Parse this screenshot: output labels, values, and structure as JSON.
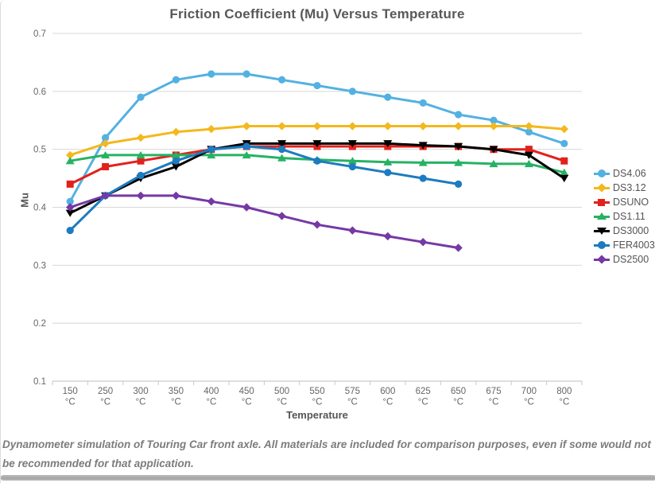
{
  "footer": {
    "text": "Dynamometer simulation of Touring Car front axle. All materials are included for comparison purposes, even if some would not be recommended for that application."
  },
  "chart_data": {
    "type": "line",
    "title": "Friction Coefficient (Mu) Versus Temperature",
    "xlabel": "Temperature",
    "ylabel": "Mu",
    "ylim": [
      0.1,
      0.7
    ],
    "ytick_step": 0.1,
    "grid": "horizontal",
    "legend_position": "right",
    "category_unit": "°C",
    "categories": [
      "150",
      "250",
      "300",
      "350",
      "400",
      "450",
      "500",
      "550",
      "575",
      "600",
      "625",
      "650",
      "675",
      "700",
      "800"
    ],
    "series": [
      {
        "name": "DS4.06",
        "color": "#53b1e2",
        "marker": "circle",
        "values": [
          0.41,
          0.52,
          0.59,
          0.62,
          0.63,
          0.63,
          0.62,
          0.61,
          0.6,
          0.59,
          0.58,
          0.56,
          0.55,
          0.53,
          0.51
        ]
      },
      {
        "name": "DS3.12",
        "color": "#f4b81d",
        "marker": "diamond",
        "values": [
          0.49,
          0.51,
          0.52,
          0.53,
          0.535,
          0.54,
          0.54,
          0.54,
          0.54,
          0.54,
          0.54,
          0.54,
          0.54,
          0.54,
          0.535
        ]
      },
      {
        "name": "DSUNO",
        "color": "#e2211c",
        "marker": "square",
        "values": [
          0.44,
          0.47,
          0.48,
          0.49,
          0.5,
          0.505,
          0.505,
          0.505,
          0.505,
          0.505,
          0.505,
          0.505,
          0.5,
          0.5,
          0.48
        ]
      },
      {
        "name": "DS1.11",
        "color": "#26b263",
        "marker": "triangle-up",
        "values": [
          0.48,
          0.49,
          0.49,
          0.49,
          0.49,
          0.49,
          0.485,
          0.482,
          0.48,
          0.478,
          0.477,
          0.477,
          0.475,
          0.475,
          0.46
        ]
      },
      {
        "name": "DS3000",
        "color": "#000000",
        "marker": "triangle-down",
        "values": [
          0.39,
          0.42,
          0.45,
          0.47,
          0.5,
          0.51,
          0.51,
          0.51,
          0.51,
          0.51,
          0.507,
          0.505,
          0.5,
          0.49,
          0.45
        ]
      },
      {
        "name": "FER4003",
        "color": "#1d7bc0",
        "marker": "circle",
        "values": [
          0.36,
          0.42,
          0.455,
          0.48,
          0.5,
          0.505,
          0.5,
          0.48,
          0.47,
          0.46,
          0.45,
          0.44,
          null,
          null,
          null
        ]
      },
      {
        "name": "DS2500",
        "color": "#7539a5",
        "marker": "diamond",
        "values": [
          0.4,
          0.42,
          0.42,
          0.42,
          0.41,
          0.4,
          0.385,
          0.37,
          0.36,
          0.35,
          0.34,
          0.33,
          null,
          null,
          null
        ]
      }
    ]
  }
}
